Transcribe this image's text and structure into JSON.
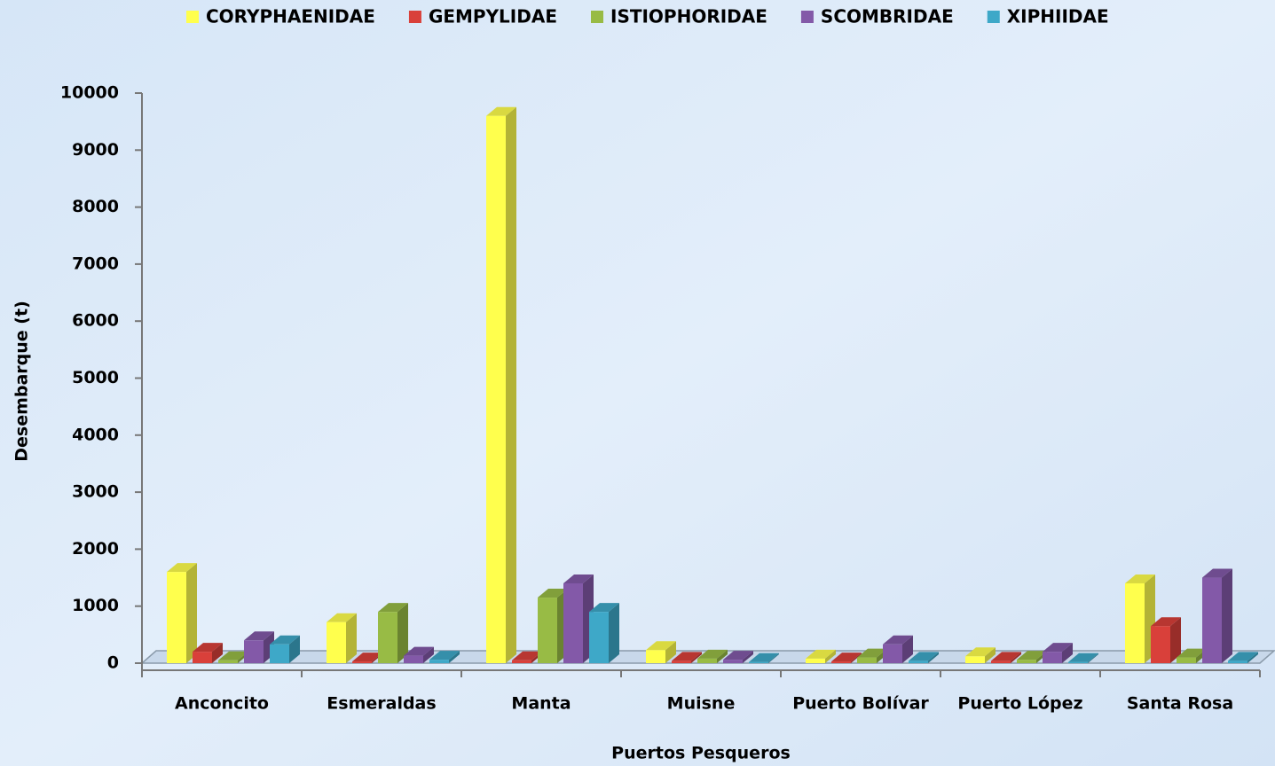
{
  "chart_data": {
    "type": "bar3d",
    "x_label": "Puertos Pesqueros",
    "y_label": "Desembarque (t)",
    "categories": [
      "Anconcito",
      "Esmeraldas",
      "Manta",
      "Muisne",
      "Puerto Bolívar",
      "Puerto López",
      "Santa Rosa"
    ],
    "series": [
      {
        "name": "CORYPHAENIDAE",
        "color": "#ffff4d",
        "values": [
          1600,
          720,
          9600,
          230,
          80,
          120,
          1400
        ]
      },
      {
        "name": "GEMPYLIDAE",
        "color": "#d9403a",
        "values": [
          200,
          30,
          50,
          40,
          30,
          40,
          650
        ]
      },
      {
        "name": "ISTIOPHORIDAE",
        "color": "#98bb45",
        "values": [
          50,
          900,
          1150,
          80,
          100,
          60,
          100
        ]
      },
      {
        "name": "SCOMBRIDAE",
        "color": "#8359a8",
        "values": [
          400,
          130,
          1400,
          60,
          330,
          200,
          1500
        ]
      },
      {
        "name": "XIPHIIDAE",
        "color": "#3ea8c8",
        "values": [
          330,
          60,
          900,
          20,
          40,
          20,
          40
        ]
      }
    ],
    "ylim": [
      0,
      10000
    ],
    "yticks": [
      0,
      1000,
      2000,
      3000,
      4000,
      5000,
      6000,
      7000,
      8000,
      9000,
      10000
    ],
    "grid": false
  }
}
